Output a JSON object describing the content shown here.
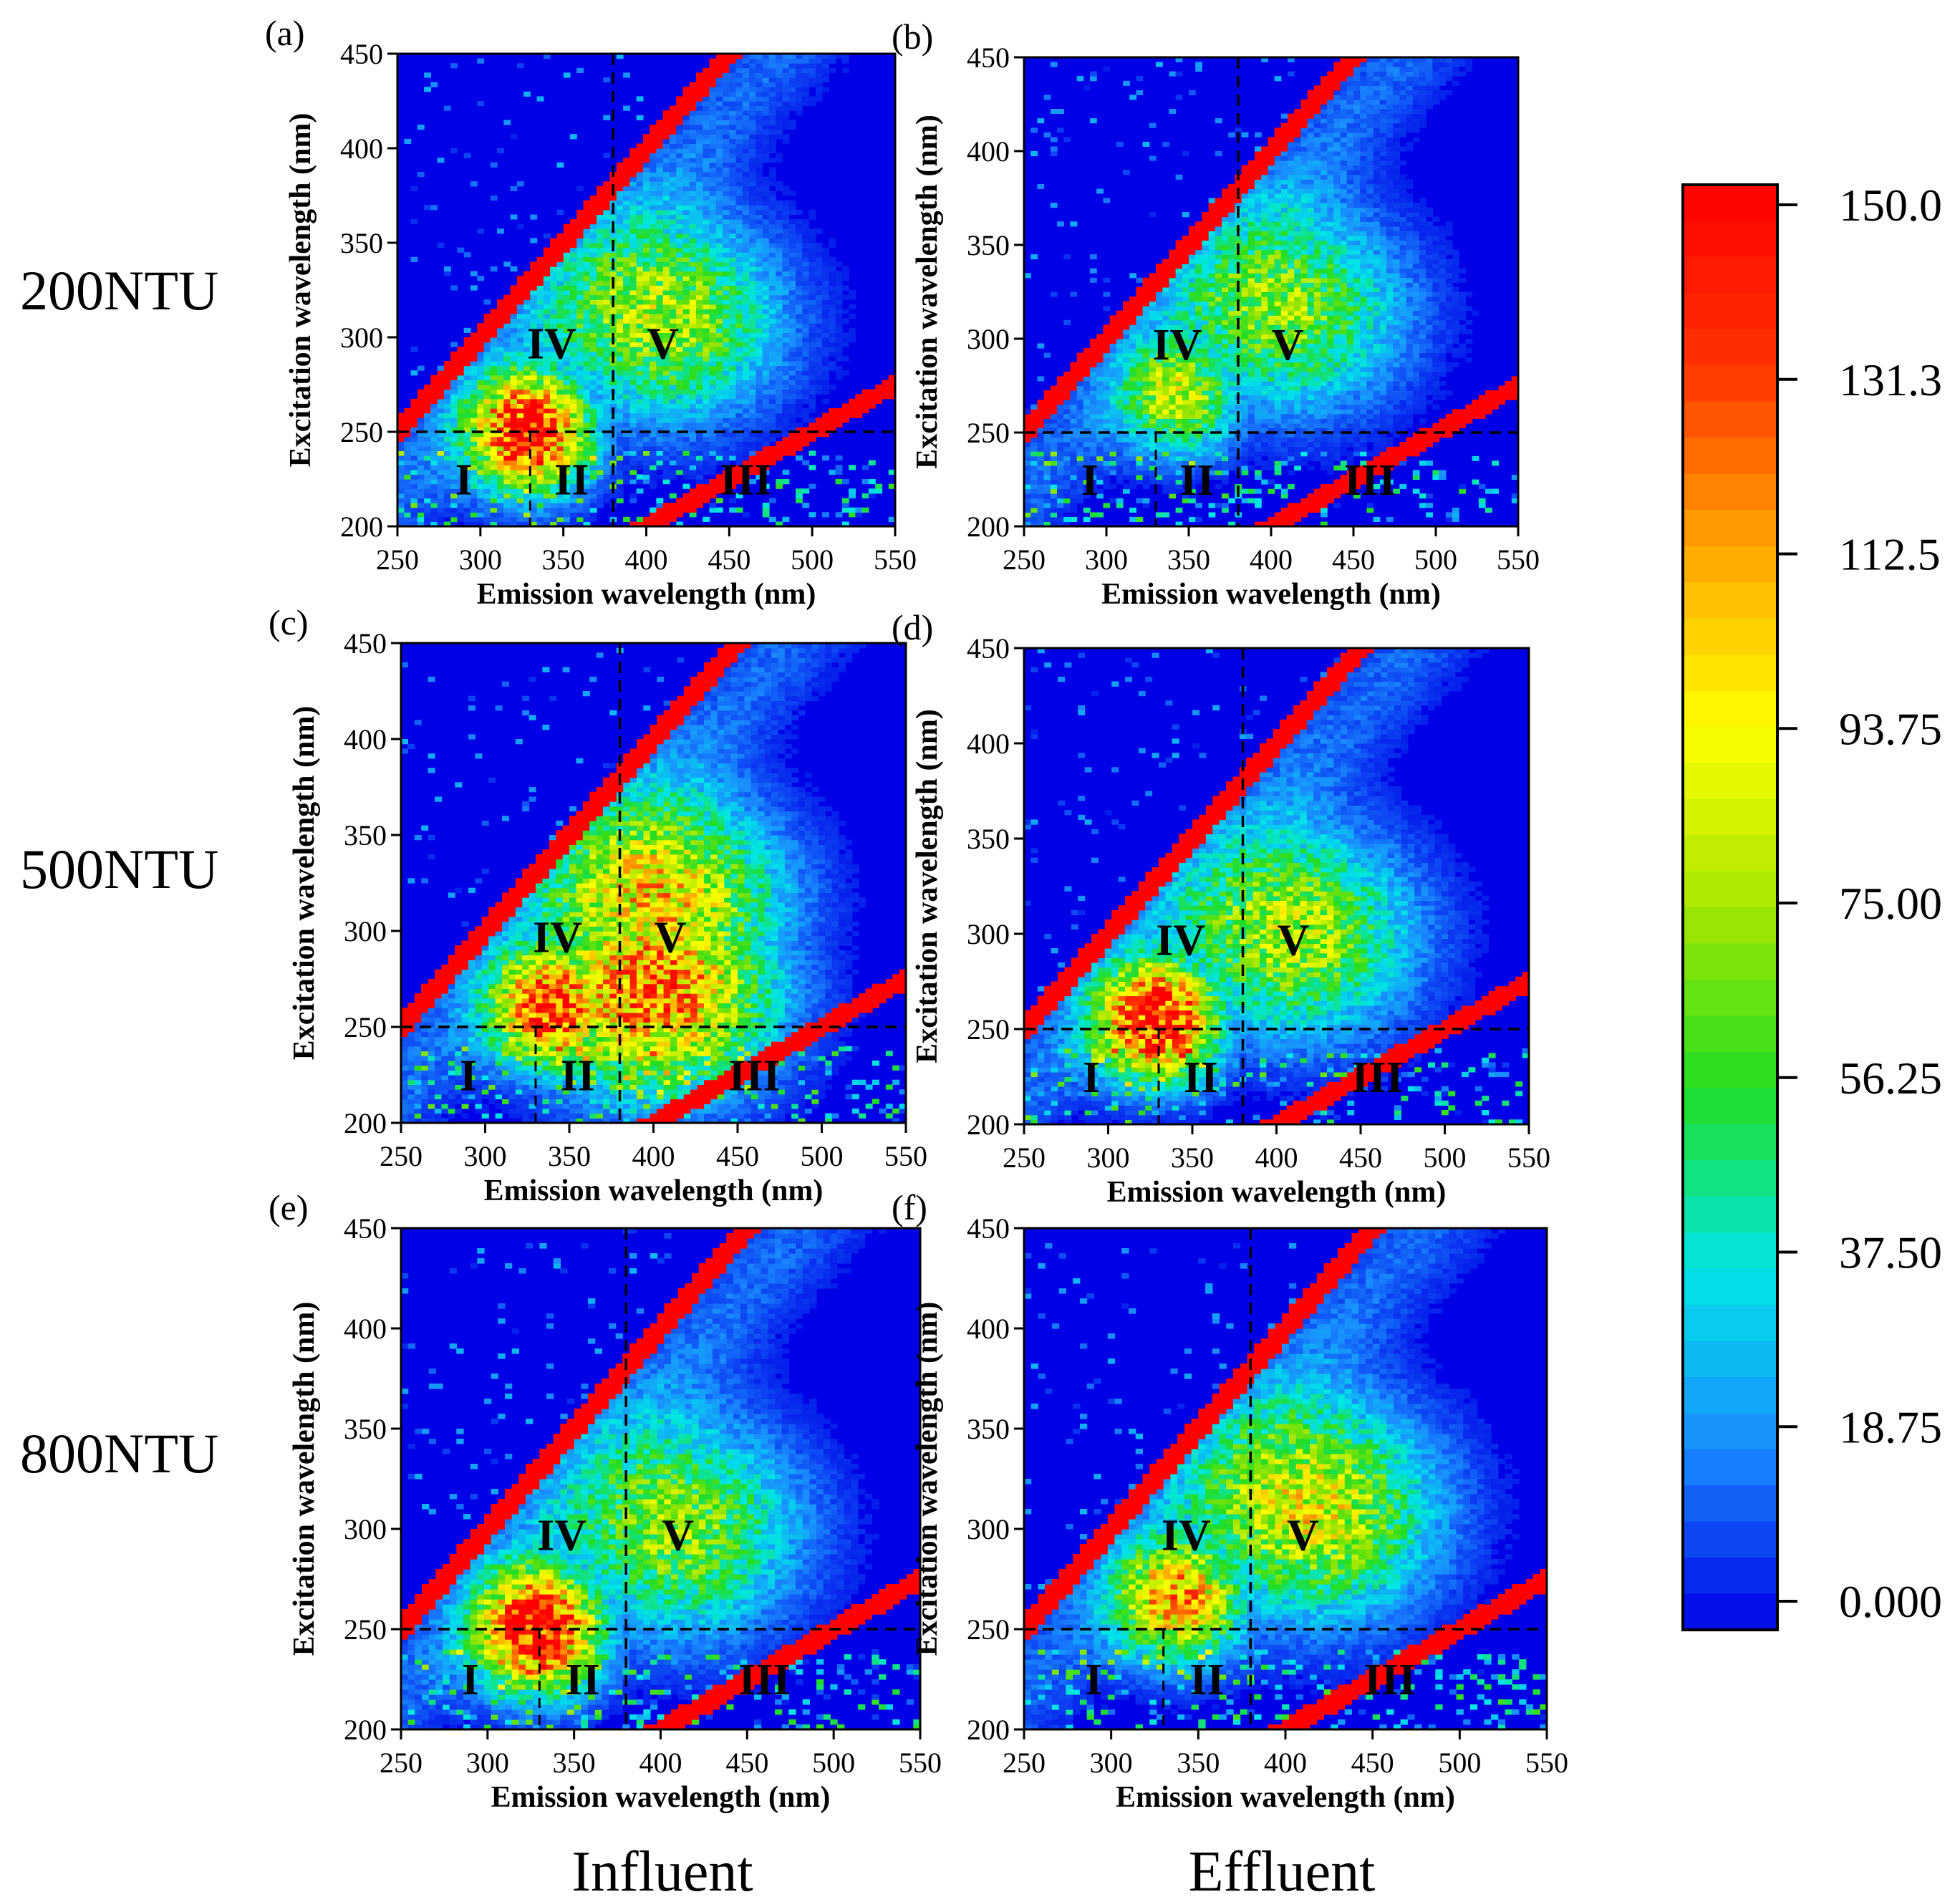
{
  "figure": {
    "row_labels": [
      "200NTU",
      "500NTU",
      "800NTU"
    ],
    "column_labels": [
      "Influent",
      "Effluent"
    ]
  },
  "colorbar": {
    "ticks": [
      "150.0",
      "131.3",
      "112.5",
      "93.75",
      "75.00",
      "56.25",
      "37.50",
      "18.75",
      "0.000"
    ],
    "min": 0,
    "max": 150,
    "colors": [
      "#0000e6",
      "#1a8cff",
      "#00e6e6",
      "#22dd22",
      "#a6e600",
      "#ffff00",
      "#ffa500",
      "#ff3300",
      "#ff0000"
    ]
  },
  "chart_data": [
    {
      "type": "heatmap",
      "panel": "(a)",
      "turbidity": "200NTU",
      "sample": "Influent",
      "xlabel": "Emission wavelength (nm)",
      "ylabel": "Excitation wavelength (nm)",
      "xlim": [
        250,
        550
      ],
      "ylim": [
        200,
        450
      ],
      "xticks": [
        250,
        300,
        350,
        400,
        450,
        500,
        550
      ],
      "yticks": [
        200,
        250,
        300,
        350,
        400,
        450
      ],
      "regions": [
        "I",
        "II",
        "III",
        "IV",
        "V"
      ],
      "region_boundaries": {
        "ex_nm": 250,
        "em_nm": [
          330,
          380
        ]
      },
      "peaks": [
        {
          "em": 330,
          "ex": 250,
          "intensity": 150
        },
        {
          "em": 410,
          "ex": 310,
          "intensity": 78
        }
      ]
    },
    {
      "type": "heatmap",
      "panel": "(b)",
      "turbidity": "200NTU",
      "sample": "Effluent",
      "xlabel": "Emission wavelength (nm)",
      "ylabel": "Excitation wavelength (nm)",
      "xlim": [
        250,
        550
      ],
      "ylim": [
        200,
        450
      ],
      "xticks": [
        250,
        300,
        350,
        400,
        450,
        500,
        550
      ],
      "yticks": [
        200,
        250,
        300,
        350,
        400,
        450
      ],
      "regions": [
        "I",
        "II",
        "III",
        "IV",
        "V"
      ],
      "region_boundaries": {
        "ex_nm": 250,
        "em_nm": [
          330,
          380
        ]
      },
      "peaks": [
        {
          "em": 345,
          "ex": 270,
          "intensity": 80
        },
        {
          "em": 410,
          "ex": 315,
          "intensity": 70
        }
      ]
    },
    {
      "type": "heatmap",
      "panel": "(c)",
      "turbidity": "500NTU",
      "sample": "Influent",
      "xlabel": "Emission wavelength (nm)",
      "ylabel": "Excitation wavelength (nm)",
      "xlim": [
        250,
        550
      ],
      "ylim": [
        200,
        450
      ],
      "xticks": [
        250,
        300,
        350,
        400,
        450,
        500,
        550
      ],
      "yticks": [
        200,
        250,
        300,
        350,
        400,
        450
      ],
      "regions": [
        "I",
        "II",
        "III",
        "IV",
        "V"
      ],
      "region_boundaries": {
        "ex_nm": 250,
        "em_nm": [
          330,
          380
        ]
      },
      "peaks": [
        {
          "em": 340,
          "ex": 260,
          "intensity": 140
        },
        {
          "em": 400,
          "ex": 270,
          "intensity": 125
        },
        {
          "em": 405,
          "ex": 315,
          "intensity": 100
        }
      ]
    },
    {
      "type": "heatmap",
      "panel": "(d)",
      "turbidity": "500NTU",
      "sample": "Effluent",
      "xlabel": "Emission wavelength (nm)",
      "ylabel": "Excitation wavelength (nm)",
      "xlim": [
        250,
        550
      ],
      "ylim": [
        200,
        450
      ],
      "xticks": [
        250,
        300,
        350,
        400,
        450,
        500,
        550
      ],
      "yticks": [
        200,
        250,
        300,
        350,
        400,
        450
      ],
      "regions": [
        "I",
        "II",
        "III",
        "IV",
        "V"
      ],
      "region_boundaries": {
        "ex_nm": 250,
        "em_nm": [
          330,
          380
        ]
      },
      "peaks": [
        {
          "em": 330,
          "ex": 255,
          "intensity": 150
        },
        {
          "em": 410,
          "ex": 300,
          "intensity": 80
        }
      ]
    },
    {
      "type": "heatmap",
      "panel": "(e)",
      "turbidity": "800NTU",
      "sample": "Influent",
      "xlabel": "Emission wavelength (nm)",
      "ylabel": "Excitation wavelength (nm)",
      "xlim": [
        250,
        550
      ],
      "ylim": [
        200,
        450
      ],
      "xticks": [
        250,
        300,
        350,
        400,
        450,
        500,
        550
      ],
      "yticks": [
        200,
        250,
        300,
        350,
        400,
        450
      ],
      "regions": [
        "I",
        "II",
        "III",
        "IV",
        "V"
      ],
      "region_boundaries": {
        "ex_nm": 250,
        "em_nm": [
          330,
          380
        ]
      },
      "peaks": [
        {
          "em": 330,
          "ex": 250,
          "intensity": 150
        },
        {
          "em": 410,
          "ex": 300,
          "intensity": 72
        }
      ]
    },
    {
      "type": "heatmap",
      "panel": "(f)",
      "turbidity": "800NTU",
      "sample": "Effluent",
      "xlabel": "Emission wavelength (nm)",
      "ylabel": "Excitation wavelength (nm)",
      "xlim": [
        250,
        550
      ],
      "ylim": [
        200,
        450
      ],
      "xticks": [
        250,
        300,
        350,
        400,
        450,
        500,
        550
      ],
      "yticks": [
        200,
        250,
        300,
        350,
        400,
        450
      ],
      "regions": [
        "I",
        "II",
        "III",
        "IV",
        "V"
      ],
      "region_boundaries": {
        "ex_nm": 250,
        "em_nm": [
          330,
          380
        ]
      },
      "peaks": [
        {
          "em": 340,
          "ex": 265,
          "intensity": 110
        },
        {
          "em": 415,
          "ex": 310,
          "intensity": 90
        }
      ]
    }
  ]
}
